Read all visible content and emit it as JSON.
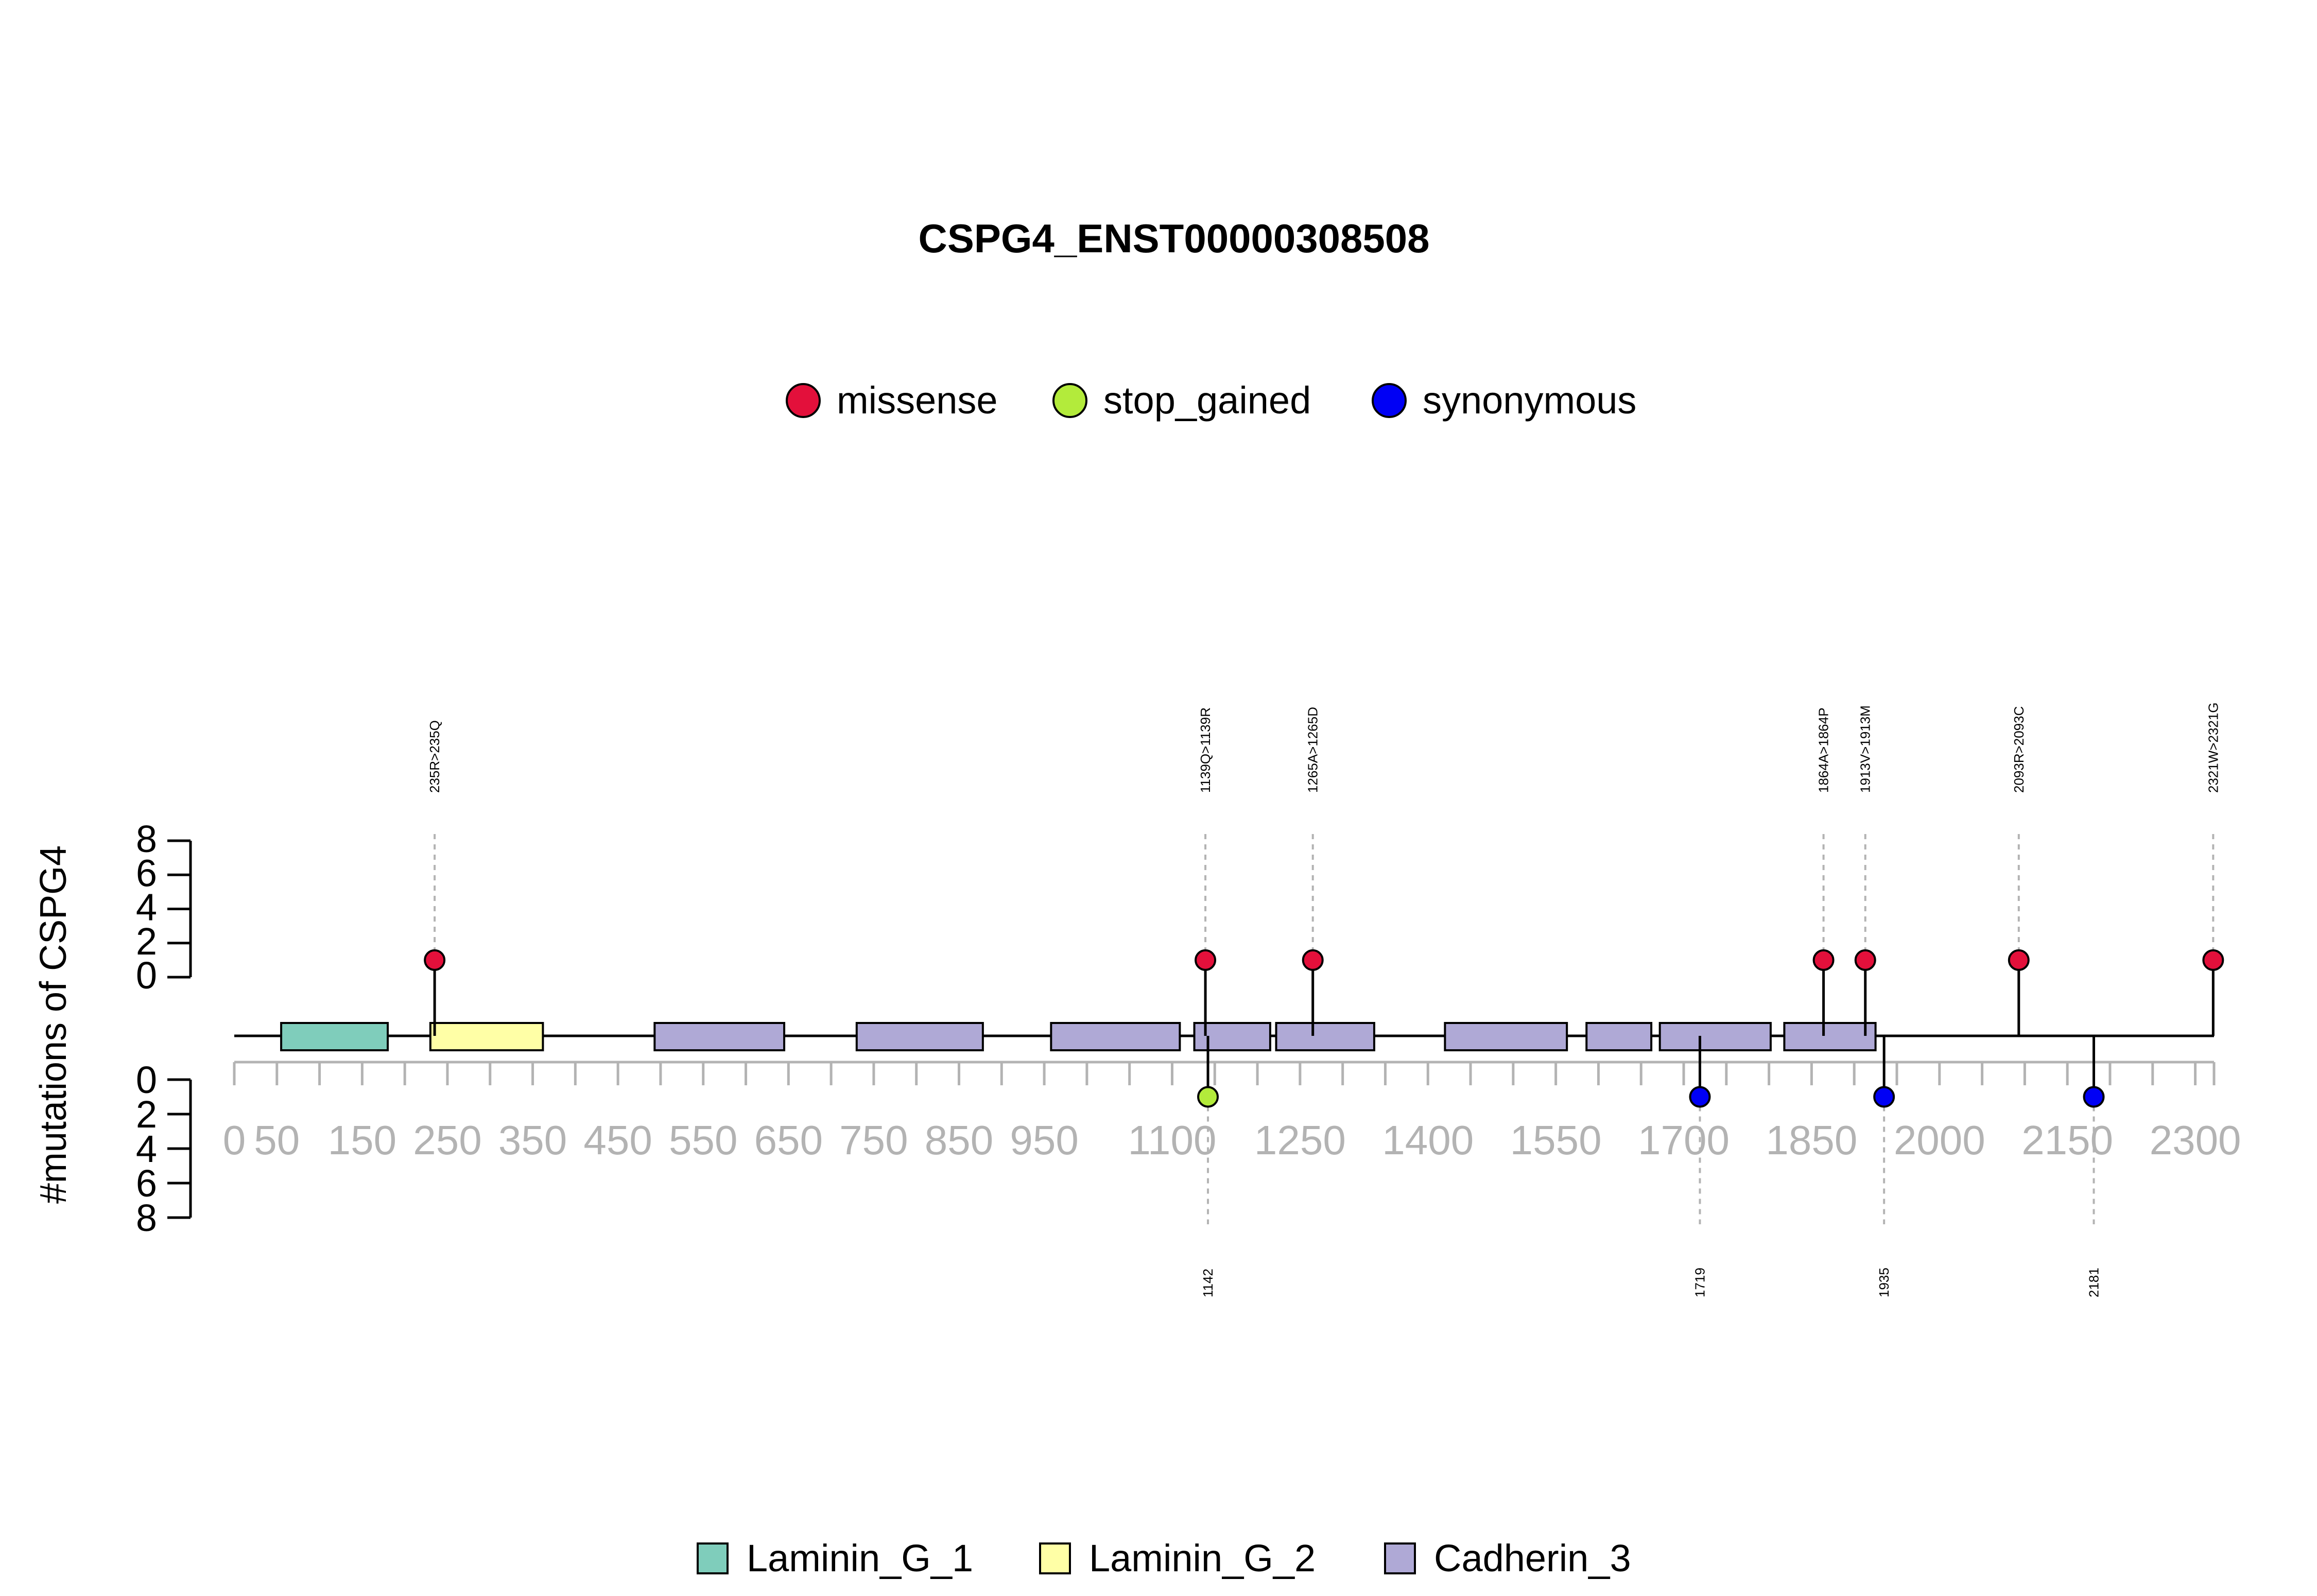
{
  "chart_data": {
    "type": "lollipop",
    "title": "CSPG4_ENST00000308508",
    "ylabel": "#mutations of CSPG4",
    "xlim": [
      0,
      2322
    ],
    "ylim_top": [
      0,
      8
    ],
    "ylim_bottom": [
      0,
      8
    ],
    "y_ticks": [
      "0",
      "2",
      "4",
      "6",
      "8"
    ],
    "x_ticks": [
      {
        "value": 0,
        "label": "0"
      },
      {
        "value": 50,
        "label": "50"
      },
      {
        "value": 150,
        "label": "150"
      },
      {
        "value": 250,
        "label": "250"
      },
      {
        "value": 350,
        "label": "350"
      },
      {
        "value": 450,
        "label": "450"
      },
      {
        "value": 550,
        "label": "550"
      },
      {
        "value": 650,
        "label": "650"
      },
      {
        "value": 750,
        "label": "750"
      },
      {
        "value": 850,
        "label": "850"
      },
      {
        "value": 950,
        "label": "950"
      },
      {
        "value": 1100,
        "label": "1100"
      },
      {
        "value": 1250,
        "label": "1250"
      },
      {
        "value": 1400,
        "label": "1400"
      },
      {
        "value": 1550,
        "label": "1550"
      },
      {
        "value": 1700,
        "label": "1700"
      },
      {
        "value": 1850,
        "label": "1850"
      },
      {
        "value": 2000,
        "label": "2000"
      },
      {
        "value": 2150,
        "label": "2150"
      },
      {
        "value": 2300,
        "label": "2300"
      }
    ],
    "minor_ticks": [
      0,
      50,
      100,
      150,
      200,
      250,
      300,
      350,
      400,
      450,
      500,
      550,
      600,
      650,
      700,
      750,
      800,
      850,
      900,
      950,
      1000,
      1050,
      1100,
      1150,
      1200,
      1250,
      1300,
      1350,
      1400,
      1450,
      1500,
      1550,
      1600,
      1650,
      1700,
      1750,
      1800,
      1850,
      1900,
      1950,
      2000,
      2050,
      2100,
      2150,
      2200,
      2250,
      2300,
      2322
    ],
    "mutation_legend": [
      {
        "name": "missense",
        "color": "#E3103B"
      },
      {
        "name": "stop_gained",
        "color": "#B3EB3B"
      },
      {
        "name": "synonymous",
        "color": "#0000F5"
      }
    ],
    "domain_legend": [
      {
        "name": "Laminin_G_1",
        "color": "#7FCDBB"
      },
      {
        "name": "Laminin_G_2",
        "color": "#FFFFA6"
      },
      {
        "name": "Cadherin_3",
        "color": "#AFA9D6"
      }
    ],
    "domains": [
      {
        "name": "Laminin_G_1",
        "start": 55,
        "end": 180
      },
      {
        "name": "Laminin_G_2",
        "start": 230,
        "end": 362
      },
      {
        "name": "Cadherin_3",
        "start": 493,
        "end": 645
      },
      {
        "name": "Cadherin_3",
        "start": 730,
        "end": 878
      },
      {
        "name": "Cadherin_3",
        "start": 958,
        "end": 1109
      },
      {
        "name": "Cadherin_3",
        "start": 1126,
        "end": 1215
      },
      {
        "name": "Cadherin_3",
        "start": 1222,
        "end": 1337
      },
      {
        "name": "Cadherin_3",
        "start": 1420,
        "end": 1563
      },
      {
        "name": "Cadherin_3",
        "start": 1586,
        "end": 1662
      },
      {
        "name": "Cadherin_3",
        "start": 1672,
        "end": 1802
      },
      {
        "name": "Cadherin_3",
        "start": 1818,
        "end": 1925
      }
    ],
    "mutations_top": [
      {
        "pos": 235,
        "count": 1,
        "type": "missense",
        "label": "235R>235Q"
      },
      {
        "pos": 1139,
        "count": 1,
        "type": "missense",
        "label": "1139Q>1139R"
      },
      {
        "pos": 1265,
        "count": 1,
        "type": "missense",
        "label": "1265A>1265D"
      },
      {
        "pos": 1864,
        "count": 1,
        "type": "missense",
        "label": "1864A>1864P"
      },
      {
        "pos": 1913,
        "count": 1,
        "type": "missense",
        "label": "1913V>1913M"
      },
      {
        "pos": 2093,
        "count": 1,
        "type": "missense",
        "label": "2093R>2093C"
      },
      {
        "pos": 2321,
        "count": 1,
        "type": "missense",
        "label": "2321W>2321G"
      }
    ],
    "mutations_bottom": [
      {
        "pos": 1142,
        "count": 1,
        "type": "stop_gained",
        "label": "1142"
      },
      {
        "pos": 1719,
        "count": 1,
        "type": "synonymous",
        "label": "1719"
      },
      {
        "pos": 1935,
        "count": 1,
        "type": "synonymous",
        "label": "1935"
      },
      {
        "pos": 2181,
        "count": 1,
        "type": "synonymous",
        "label": "2181"
      }
    ]
  }
}
